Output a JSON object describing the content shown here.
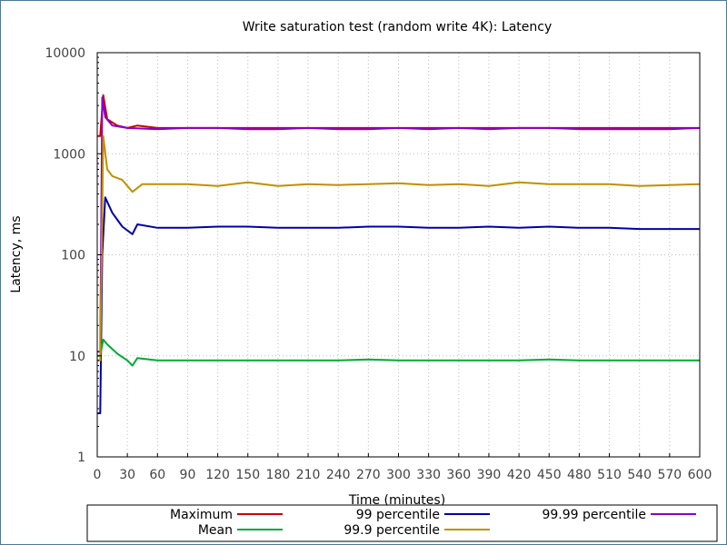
{
  "chart_data": {
    "type": "line",
    "title": "Write saturation test (random write 4K): Latency",
    "xlabel": "Time (minutes)",
    "ylabel": "Latency, ms",
    "xlim": [
      0,
      600
    ],
    "ylim": [
      1,
      10000
    ],
    "yscale": "log",
    "grid": true,
    "legend_position": "bottom",
    "x_ticks": [
      "0",
      "30",
      "60",
      "90",
      "120",
      "150",
      "180",
      "210",
      "240",
      "270",
      "300",
      "330",
      "360",
      "390",
      "420",
      "450",
      "480",
      "510",
      "540",
      "570",
      "600"
    ],
    "y_ticks": [
      "1",
      "10",
      "100",
      "1000",
      "10000"
    ],
    "series": [
      {
        "name": "Maximum",
        "color": "#cc0000",
        "x": [
          0,
          3,
          6,
          10,
          20,
          30,
          40,
          60,
          90,
          120,
          150,
          180,
          210,
          240,
          270,
          300,
          330,
          360,
          390,
          420,
          450,
          480,
          510,
          540,
          570,
          600
        ],
        "y": [
          1500,
          1500,
          3800,
          2200,
          1900,
          1800,
          1900,
          1800,
          1800,
          1800,
          1800,
          1800,
          1800,
          1800,
          1800,
          1800,
          1800,
          1800,
          1800,
          1800,
          1800,
          1800,
          1800,
          1800,
          1800,
          1800
        ]
      },
      {
        "name": "99 percentile",
        "color": "#0000aa",
        "x": [
          0,
          3,
          5,
          8,
          15,
          25,
          35,
          40,
          60,
          90,
          120,
          150,
          180,
          210,
          240,
          270,
          300,
          330,
          360,
          390,
          420,
          450,
          480,
          510,
          540,
          570,
          600
        ],
        "y": [
          2.7,
          2.7,
          100,
          370,
          260,
          190,
          160,
          200,
          185,
          185,
          190,
          190,
          185,
          185,
          185,
          190,
          190,
          185,
          185,
          190,
          185,
          190,
          185,
          185,
          180,
          180,
          180
        ]
      },
      {
        "name": "99.99 percentile",
        "color": "#8800cc",
        "x": [
          0,
          3,
          5,
          8,
          15,
          30,
          60,
          90,
          120,
          150,
          180,
          210,
          240,
          270,
          300,
          330,
          360,
          390,
          420,
          450,
          480,
          510,
          540,
          570,
          600
        ],
        "y": [
          11,
          11,
          3600,
          2300,
          1900,
          1800,
          1750,
          1800,
          1800,
          1750,
          1750,
          1800,
          1750,
          1750,
          1800,
          1750,
          1800,
          1750,
          1800,
          1800,
          1750,
          1750,
          1750,
          1750,
          1800
        ]
      },
      {
        "name": "Mean",
        "color": "#00aa33",
        "x": [
          0,
          3,
          6,
          10,
          20,
          30,
          35,
          40,
          60,
          90,
          120,
          150,
          180,
          210,
          240,
          270,
          300,
          330,
          360,
          390,
          420,
          450,
          480,
          510,
          540,
          570,
          600
        ],
        "y": [
          10,
          10,
          14.5,
          13,
          10.5,
          9,
          8,
          9.5,
          9,
          9,
          9,
          9,
          9,
          9,
          9,
          9.2,
          9,
          9,
          9,
          9,
          9,
          9.2,
          9,
          9,
          9,
          9,
          9
        ]
      },
      {
        "name": "99.9 percentile",
        "color": "#c09000",
        "x": [
          0,
          3,
          6,
          10,
          15,
          25,
          35,
          45,
          60,
          90,
          120,
          150,
          180,
          210,
          240,
          270,
          300,
          330,
          360,
          390,
          420,
          450,
          480,
          510,
          540,
          570,
          600
        ],
        "y": [
          9,
          9,
          1500,
          700,
          600,
          550,
          420,
          500,
          500,
          500,
          480,
          520,
          480,
          500,
          490,
          500,
          510,
          490,
          500,
          480,
          520,
          500,
          500,
          500,
          480,
          490,
          500
        ]
      }
    ]
  }
}
